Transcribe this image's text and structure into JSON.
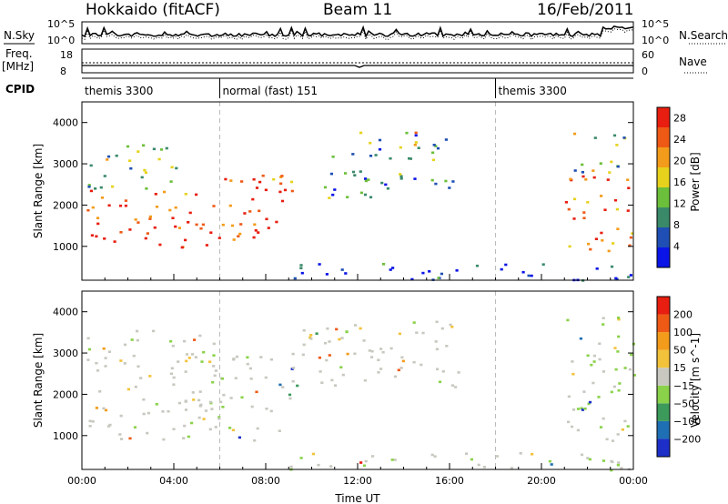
{
  "header": {
    "station": "Hokkaido (fitACF)",
    "beam": "Beam 11",
    "date": "16/Feb/2011"
  },
  "top_panels": {
    "nsky_label": "N.Sky",
    "nsearch_label": "N.Search",
    "nsky_ticks": [
      "10^5",
      "10^0"
    ],
    "nsearch_ticks": [
      "10^5",
      "10^0"
    ],
    "freq_label_line1": "Freq.",
    "freq_label_line2": "[MHz]",
    "freq_ticks": [
      "18",
      "8"
    ],
    "nave_label": "Nave",
    "nave_ticks": [
      "60",
      "0"
    ],
    "cpid_label": "CPID",
    "cpid_segments": [
      {
        "label": "themis 3300",
        "start_hour": 0,
        "end_hour": 6
      },
      {
        "label": "normal (fast) 151",
        "start_hour": 6,
        "end_hour": 18
      },
      {
        "label": "themis 3300",
        "start_hour": 18,
        "end_hour": 24
      }
    ]
  },
  "chart_data": [
    {
      "type": "heatmap",
      "name_printed": "Power [dB]",
      "ylabel": "Slant Range [km]",
      "xlabel": "Time UT",
      "x_ticks": [
        "00:00",
        "04:00",
        "08:00",
        "12:00",
        "16:00",
        "20:00",
        "00:00"
      ],
      "xlim": [
        0,
        24
      ],
      "y_ticks": [
        1000,
        2000,
        3000,
        4000
      ],
      "ylim": [
        180,
        4500
      ],
      "colorbar_label": "Power [dB]",
      "colorbar_ticks": [
        4,
        8,
        12,
        16,
        20,
        24,
        28
      ],
      "colorbar_range": [
        0,
        30
      ],
      "colors": [
        "#0a14e6",
        "#1f4fb4",
        "#3a8a6a",
        "#6cbf3a",
        "#e6d21c",
        "#f39b1a",
        "#ee5a16",
        "#e81e10"
      ],
      "regions": [
        {
          "t0": 0.2,
          "t1": 3.6,
          "r0": 950,
          "r1": 1450,
          "level": 0.95
        },
        {
          "t0": 0.2,
          "t1": 5.8,
          "r0": 1450,
          "r1": 2400,
          "level": 0.85
        },
        {
          "t0": 0.2,
          "t1": 4.5,
          "r0": 2400,
          "r1": 3500,
          "level": 0.45
        },
        {
          "t0": 3.5,
          "t1": 7.6,
          "r0": 950,
          "r1": 1300,
          "level": 0.92
        },
        {
          "t0": 5.5,
          "t1": 8.8,
          "r0": 1300,
          "r1": 2700,
          "level": 0.9
        },
        {
          "t0": 7.5,
          "t1": 9.2,
          "r0": 2300,
          "r1": 3000,
          "level": 0.8
        },
        {
          "t0": 9.0,
          "t1": 16.5,
          "r0": 2200,
          "r1": 2900,
          "level": 0.3
        },
        {
          "t0": 10.5,
          "t1": 16.0,
          "r0": 3100,
          "r1": 3800,
          "level": 0.35
        },
        {
          "t0": 14.0,
          "t1": 15.2,
          "r0": 3350,
          "r1": 3800,
          "level": 0.7
        },
        {
          "t0": 21.0,
          "t1": 24.0,
          "r0": 900,
          "r1": 2800,
          "level": 0.8
        },
        {
          "t0": 21.3,
          "t1": 23.8,
          "r0": 2800,
          "r1": 3900,
          "level": 0.45
        },
        {
          "t0": 9.0,
          "t1": 24.0,
          "r0": 180,
          "r1": 600,
          "level": 0.15
        }
      ]
    },
    {
      "type": "heatmap",
      "name_printed": "Velocity [m s^-1]",
      "ylabel": "Slant Range [km]",
      "xlabel": "Time UT",
      "x_ticks": [
        "00:00",
        "04:00",
        "08:00",
        "12:00",
        "16:00",
        "20:00",
        "00:00"
      ],
      "xlim": [
        0,
        24
      ],
      "y_ticks": [
        1000,
        2000,
        3000,
        4000
      ],
      "ylim": [
        180,
        4500
      ],
      "colorbar_label": "Velocity [m s^-1]",
      "colorbar_ticks": [
        200,
        100,
        50,
        15,
        -15,
        -50,
        -100,
        -200
      ],
      "colors": [
        "#1d2fc8",
        "#1f6fb4",
        "#3c9a5a",
        "#8ad24a",
        "#c8c8c0",
        "#f2c23a",
        "#f39b1a",
        "#ee5a16",
        "#e81e10"
      ],
      "regions": [
        {
          "t0": 0.2,
          "t1": 5.8,
          "r0": 900,
          "r1": 3600,
          "level": 0.5
        },
        {
          "t0": 5.5,
          "t1": 9.2,
          "r0": 900,
          "r1": 3000,
          "level": 0.5
        },
        {
          "t0": 9.0,
          "t1": 16.5,
          "r0": 2200,
          "r1": 3800,
          "level": 0.5
        },
        {
          "t0": 21.0,
          "t1": 24.0,
          "r0": 900,
          "r1": 3900,
          "level": 0.5
        },
        {
          "t0": 9.0,
          "t1": 24.0,
          "r0": 180,
          "r1": 600,
          "level": 0.3
        }
      ]
    }
  ]
}
